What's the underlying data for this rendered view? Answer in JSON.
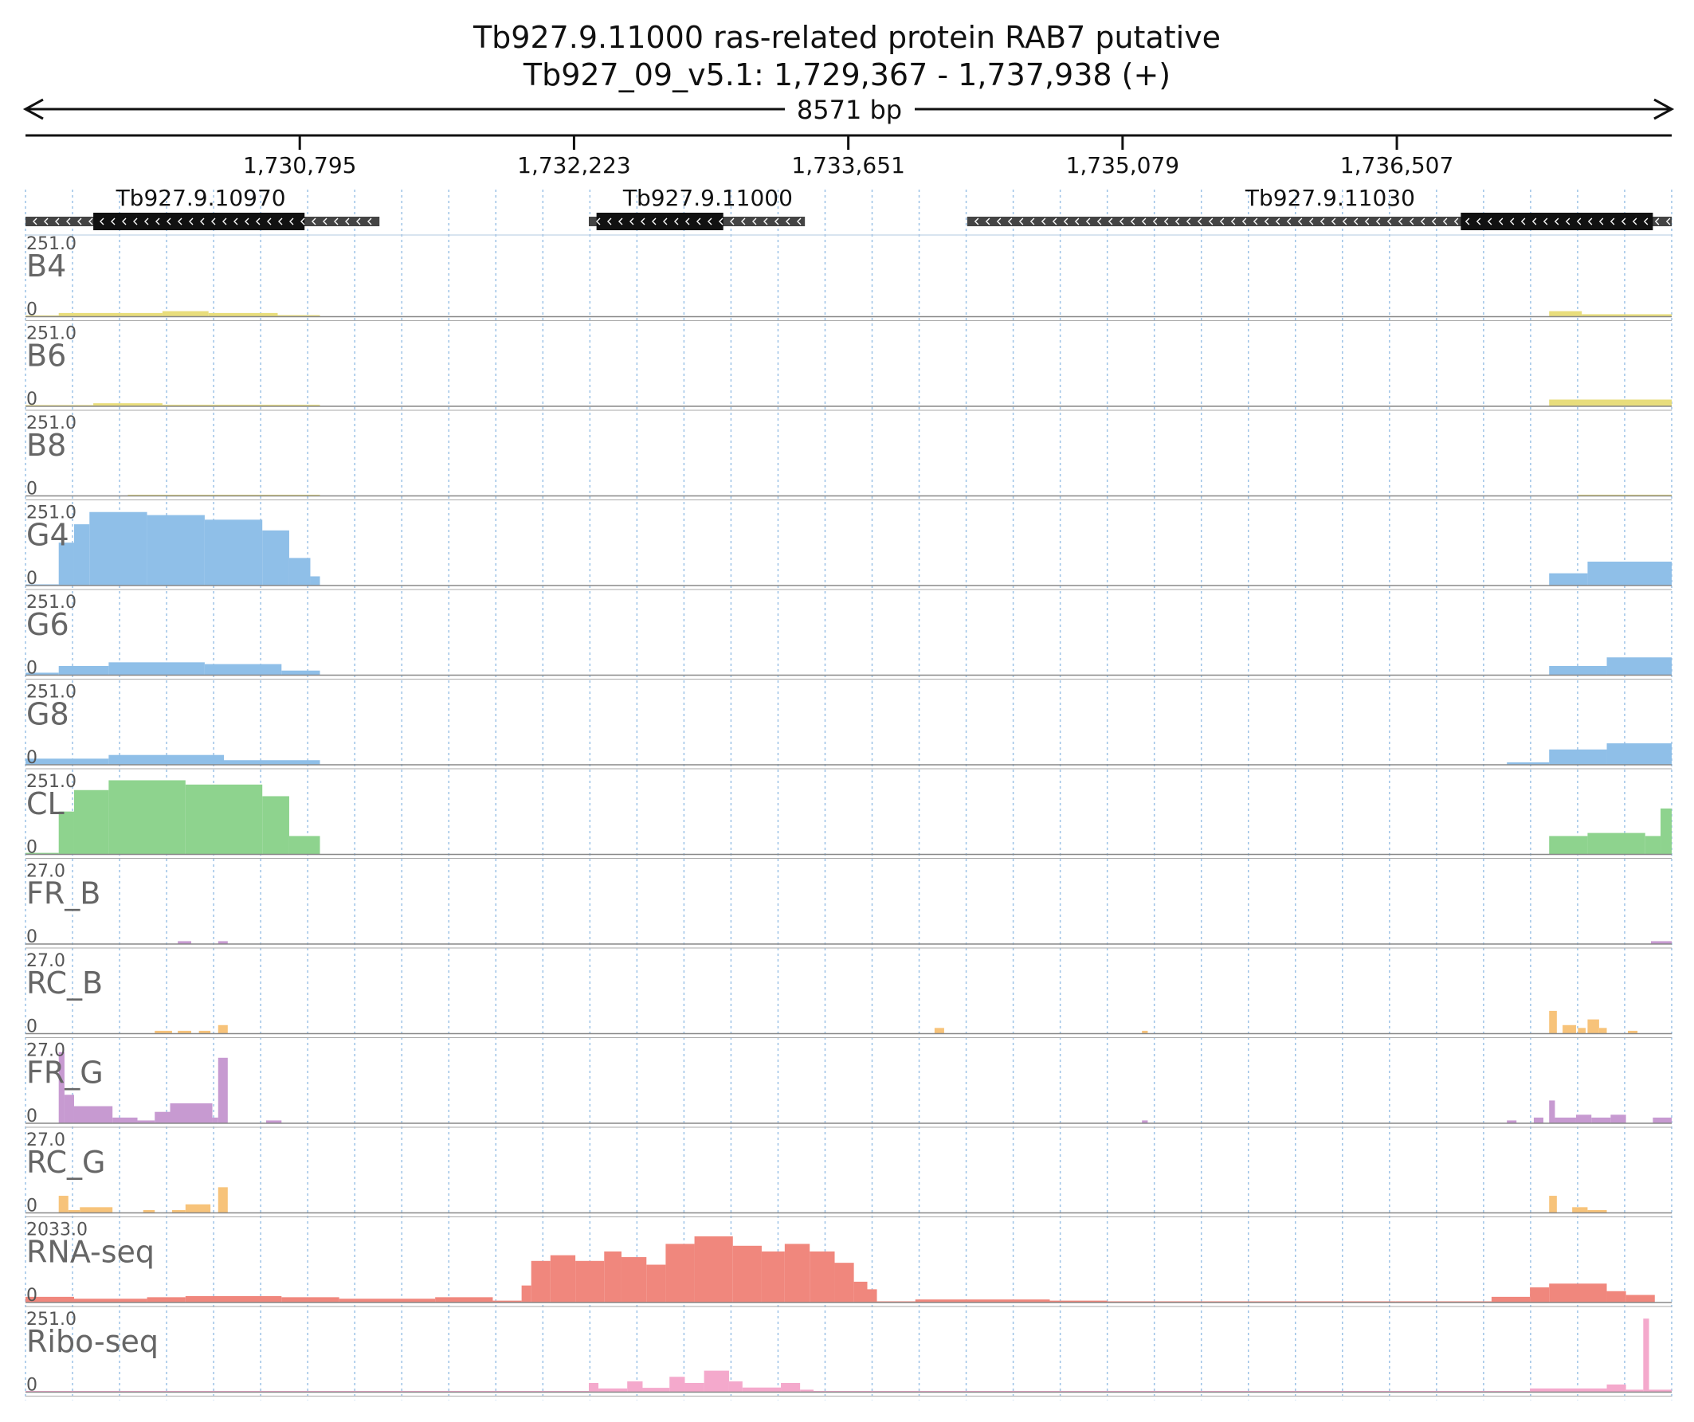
{
  "header": {
    "title_line1": "Tb927.9.11000  ras-related protein RAB7  putative",
    "title_line2": "Tb927_09_v5.1: 1,729,367 - 1,737,938 (+)",
    "span_label": "8571 bp"
  },
  "chart_data": {
    "type": "area",
    "region": {
      "chrom": "Tb927_09_v5.1",
      "start": 1729367,
      "end": 1737938,
      "strand": "+"
    },
    "ruler_ticks": [
      {
        "pos": 1730795,
        "label": "1,730,795"
      },
      {
        "pos": 1732223,
        "label": "1,732,223"
      },
      {
        "pos": 1733651,
        "label": "1,733,651"
      },
      {
        "pos": 1735079,
        "label": "1,735,079"
      },
      {
        "pos": 1736507,
        "label": "1,736,507"
      }
    ],
    "genes": [
      {
        "name": "Tb927.9.10970",
        "strand": "-",
        "start": 1729367,
        "end": 1731210,
        "cds_start": 1729720,
        "cds_end": 1730820,
        "label_pos": 1730280
      },
      {
        "name": "Tb927.9.11000",
        "strand": "-",
        "start": 1732300,
        "end": 1733425,
        "cds_start": 1732340,
        "cds_end": 1733000,
        "label_pos": 1732920
      },
      {
        "name": "Tb927.9.11030",
        "strand": "-",
        "start": 1734270,
        "end": 1737938,
        "cds_start": 1736840,
        "cds_end": 1737840,
        "label_pos": 1736160
      }
    ],
    "grid": true,
    "tracks": [
      {
        "name": "B4",
        "max": "251.0",
        "min": "0",
        "color": "#e8dd7c",
        "segments": [
          {
            "start": 1729367,
            "end": 1729540,
            "level": 4
          },
          {
            "start": 1729540,
            "end": 1730080,
            "level": 12
          },
          {
            "start": 1730080,
            "end": 1730320,
            "level": 18
          },
          {
            "start": 1730320,
            "end": 1730680,
            "level": 12
          },
          {
            "start": 1730680,
            "end": 1730900,
            "level": 5
          },
          {
            "start": 1737300,
            "end": 1737470,
            "level": 18
          },
          {
            "start": 1737470,
            "end": 1737938,
            "level": 8
          }
        ]
      },
      {
        "name": "B6",
        "max": "251.0",
        "min": "0",
        "color": "#e8dd7c",
        "segments": [
          {
            "start": 1729367,
            "end": 1729720,
            "level": 4
          },
          {
            "start": 1729720,
            "end": 1730080,
            "level": 10
          },
          {
            "start": 1730080,
            "end": 1730900,
            "level": 5
          },
          {
            "start": 1737300,
            "end": 1737938,
            "level": 22
          }
        ]
      },
      {
        "name": "B8",
        "max": "251.0",
        "min": "0",
        "color": "#e8dd7c",
        "segments": [
          {
            "start": 1729900,
            "end": 1730900,
            "level": 3
          },
          {
            "start": 1737450,
            "end": 1737938,
            "level": 4
          }
        ]
      },
      {
        "name": "G4",
        "max": "251.0",
        "min": "0",
        "color": "#8fbfe8",
        "segments": [
          {
            "start": 1729367,
            "end": 1729540,
            "level": 2
          },
          {
            "start": 1729540,
            "end": 1729620,
            "level": 140
          },
          {
            "start": 1729620,
            "end": 1729700,
            "level": 200
          },
          {
            "start": 1729700,
            "end": 1730000,
            "level": 240
          },
          {
            "start": 1730000,
            "end": 1730300,
            "level": 230
          },
          {
            "start": 1730300,
            "end": 1730600,
            "level": 215
          },
          {
            "start": 1730600,
            "end": 1730740,
            "level": 180
          },
          {
            "start": 1730740,
            "end": 1730850,
            "level": 90
          },
          {
            "start": 1730850,
            "end": 1730900,
            "level": 30
          },
          {
            "start": 1737300,
            "end": 1737500,
            "level": 40
          },
          {
            "start": 1737500,
            "end": 1737938,
            "level": 78
          }
        ]
      },
      {
        "name": "G6",
        "max": "251.0",
        "min": "0",
        "color": "#8fbfe8",
        "segments": [
          {
            "start": 1729367,
            "end": 1729540,
            "level": 8
          },
          {
            "start": 1729540,
            "end": 1729800,
            "level": 30
          },
          {
            "start": 1729800,
            "end": 1730300,
            "level": 42
          },
          {
            "start": 1730300,
            "end": 1730700,
            "level": 36
          },
          {
            "start": 1730700,
            "end": 1730900,
            "level": 15
          },
          {
            "start": 1737300,
            "end": 1737600,
            "level": 30
          },
          {
            "start": 1737600,
            "end": 1737938,
            "level": 58
          }
        ]
      },
      {
        "name": "G8",
        "max": "251.0",
        "min": "0",
        "color": "#8fbfe8",
        "segments": [
          {
            "start": 1729367,
            "end": 1729800,
            "level": 20
          },
          {
            "start": 1729800,
            "end": 1730400,
            "level": 32
          },
          {
            "start": 1730400,
            "end": 1730900,
            "level": 15
          },
          {
            "start": 1737080,
            "end": 1737300,
            "level": 8
          },
          {
            "start": 1737300,
            "end": 1737600,
            "level": 50
          },
          {
            "start": 1737600,
            "end": 1737938,
            "level": 70
          }
        ]
      },
      {
        "name": "CL",
        "max": "251.0",
        "min": "0",
        "color": "#8ed38e",
        "segments": [
          {
            "start": 1729367,
            "end": 1729540,
            "level": 5
          },
          {
            "start": 1729540,
            "end": 1729620,
            "level": 140
          },
          {
            "start": 1729620,
            "end": 1729800,
            "level": 210
          },
          {
            "start": 1729800,
            "end": 1730200,
            "level": 242
          },
          {
            "start": 1730200,
            "end": 1730600,
            "level": 228
          },
          {
            "start": 1730600,
            "end": 1730740,
            "level": 190
          },
          {
            "start": 1730740,
            "end": 1730900,
            "level": 60
          },
          {
            "start": 1737300,
            "end": 1737500,
            "level": 60
          },
          {
            "start": 1737500,
            "end": 1737800,
            "level": 70
          },
          {
            "start": 1737800,
            "end": 1737880,
            "level": 60
          },
          {
            "start": 1737880,
            "end": 1737938,
            "level": 150
          }
        ]
      },
      {
        "name": "FR_B",
        "max": "27.0",
        "min": "0",
        "color": "#c79ad1",
        "segments": [
          {
            "start": 1730160,
            "end": 1730230,
            "level": 1
          },
          {
            "start": 1730370,
            "end": 1730420,
            "level": 1
          },
          {
            "start": 1737830,
            "end": 1737938,
            "level": 1
          }
        ]
      },
      {
        "name": "RC_B",
        "max": "27.0",
        "min": "0",
        "color": "#f7c37a",
        "segments": [
          {
            "start": 1730040,
            "end": 1730130,
            "level": 1
          },
          {
            "start": 1730160,
            "end": 1730230,
            "level": 1
          },
          {
            "start": 1730270,
            "end": 1730330,
            "level": 1
          },
          {
            "start": 1730370,
            "end": 1730420,
            "level": 3
          },
          {
            "start": 1734100,
            "end": 1734150,
            "level": 2
          },
          {
            "start": 1735180,
            "end": 1735210,
            "level": 1
          },
          {
            "start": 1737300,
            "end": 1737340,
            "level": 8
          },
          {
            "start": 1737370,
            "end": 1737440,
            "level": 3
          },
          {
            "start": 1737450,
            "end": 1737490,
            "level": 2
          },
          {
            "start": 1737500,
            "end": 1737560,
            "level": 5
          },
          {
            "start": 1737560,
            "end": 1737600,
            "level": 2
          },
          {
            "start": 1737710,
            "end": 1737760,
            "level": 1
          }
        ]
      },
      {
        "name": "FR_G",
        "max": "27.0",
        "min": "0",
        "color": "#c79ad1",
        "segments": [
          {
            "start": 1729540,
            "end": 1729570,
            "level": 25
          },
          {
            "start": 1729570,
            "end": 1729620,
            "level": 10
          },
          {
            "start": 1729620,
            "end": 1729820,
            "level": 6
          },
          {
            "start": 1729820,
            "end": 1729950,
            "level": 2
          },
          {
            "start": 1729950,
            "end": 1730040,
            "level": 1
          },
          {
            "start": 1730040,
            "end": 1730120,
            "level": 4
          },
          {
            "start": 1730120,
            "end": 1730340,
            "level": 7
          },
          {
            "start": 1730340,
            "end": 1730370,
            "level": 2
          },
          {
            "start": 1730370,
            "end": 1730420,
            "level": 23
          },
          {
            "start": 1730620,
            "end": 1730700,
            "level": 1
          },
          {
            "start": 1735180,
            "end": 1735210,
            "level": 1
          },
          {
            "start": 1737080,
            "end": 1737130,
            "level": 1
          },
          {
            "start": 1737220,
            "end": 1737270,
            "level": 2
          },
          {
            "start": 1737300,
            "end": 1737330,
            "level": 8
          },
          {
            "start": 1737330,
            "end": 1737440,
            "level": 2
          },
          {
            "start": 1737440,
            "end": 1737520,
            "level": 3
          },
          {
            "start": 1737520,
            "end": 1737620,
            "level": 2
          },
          {
            "start": 1737620,
            "end": 1737700,
            "level": 3
          },
          {
            "start": 1737840,
            "end": 1737938,
            "level": 2
          }
        ]
      },
      {
        "name": "RC_G",
        "max": "27.0",
        "min": "0",
        "color": "#f7c37a",
        "segments": [
          {
            "start": 1729540,
            "end": 1729590,
            "level": 6
          },
          {
            "start": 1729590,
            "end": 1729650,
            "level": 1
          },
          {
            "start": 1729650,
            "end": 1729820,
            "level": 2
          },
          {
            "start": 1729980,
            "end": 1730040,
            "level": 1
          },
          {
            "start": 1730130,
            "end": 1730200,
            "level": 1
          },
          {
            "start": 1730200,
            "end": 1730330,
            "level": 3
          },
          {
            "start": 1730370,
            "end": 1730420,
            "level": 9
          },
          {
            "start": 1737300,
            "end": 1737340,
            "level": 6
          },
          {
            "start": 1737420,
            "end": 1737500,
            "level": 2
          },
          {
            "start": 1737500,
            "end": 1737600,
            "level": 1
          }
        ]
      },
      {
        "name": "RNA-seq",
        "max": "2033.0",
        "min": "0",
        "color": "#f0877d",
        "segments": [
          {
            "start": 1729367,
            "end": 1729620,
            "level": 150
          },
          {
            "start": 1729620,
            "end": 1730000,
            "level": 100
          },
          {
            "start": 1730000,
            "end": 1730200,
            "level": 140
          },
          {
            "start": 1730200,
            "end": 1730700,
            "level": 170
          },
          {
            "start": 1730700,
            "end": 1731000,
            "level": 140
          },
          {
            "start": 1731000,
            "end": 1731500,
            "level": 100
          },
          {
            "start": 1731500,
            "end": 1731800,
            "level": 140
          },
          {
            "start": 1731800,
            "end": 1731950,
            "level": 50
          },
          {
            "start": 1731950,
            "end": 1732000,
            "level": 450
          },
          {
            "start": 1732000,
            "end": 1732100,
            "level": 1100
          },
          {
            "start": 1732100,
            "end": 1732230,
            "level": 1250
          },
          {
            "start": 1732230,
            "end": 1732380,
            "level": 1100
          },
          {
            "start": 1732380,
            "end": 1732470,
            "level": 1350
          },
          {
            "start": 1732470,
            "end": 1732600,
            "level": 1200
          },
          {
            "start": 1732600,
            "end": 1732700,
            "level": 1000
          },
          {
            "start": 1732700,
            "end": 1732850,
            "level": 1550
          },
          {
            "start": 1732850,
            "end": 1733050,
            "level": 1750
          },
          {
            "start": 1733050,
            "end": 1733200,
            "level": 1500
          },
          {
            "start": 1733200,
            "end": 1733320,
            "level": 1350
          },
          {
            "start": 1733320,
            "end": 1733450,
            "level": 1550
          },
          {
            "start": 1733450,
            "end": 1733580,
            "level": 1350
          },
          {
            "start": 1733580,
            "end": 1733680,
            "level": 1050
          },
          {
            "start": 1733680,
            "end": 1733750,
            "level": 550
          },
          {
            "start": 1733750,
            "end": 1733800,
            "level": 350
          },
          {
            "start": 1733800,
            "end": 1734000,
            "level": 30
          },
          {
            "start": 1734000,
            "end": 1734700,
            "level": 80
          },
          {
            "start": 1734700,
            "end": 1735000,
            "level": 50
          },
          {
            "start": 1735000,
            "end": 1736500,
            "level": 30
          },
          {
            "start": 1736500,
            "end": 1737000,
            "level": 30
          },
          {
            "start": 1737000,
            "end": 1737200,
            "level": 150
          },
          {
            "start": 1737200,
            "end": 1737300,
            "level": 400
          },
          {
            "start": 1737300,
            "end": 1737600,
            "level": 500
          },
          {
            "start": 1737600,
            "end": 1737700,
            "level": 300
          },
          {
            "start": 1737700,
            "end": 1737850,
            "level": 200
          }
        ]
      },
      {
        "name": "Ribo-seq",
        "max": "251.0",
        "min": "0",
        "color": "#f4a9cc",
        "segments": [
          {
            "start": 1729367,
            "end": 1732300,
            "level": 4
          },
          {
            "start": 1732300,
            "end": 1732350,
            "level": 30
          },
          {
            "start": 1732350,
            "end": 1732500,
            "level": 12
          },
          {
            "start": 1732500,
            "end": 1732580,
            "level": 35
          },
          {
            "start": 1732580,
            "end": 1732720,
            "level": 14
          },
          {
            "start": 1732720,
            "end": 1732800,
            "level": 50
          },
          {
            "start": 1732800,
            "end": 1732900,
            "level": 30
          },
          {
            "start": 1732900,
            "end": 1733030,
            "level": 70
          },
          {
            "start": 1733030,
            "end": 1733100,
            "level": 35
          },
          {
            "start": 1733100,
            "end": 1733300,
            "level": 15
          },
          {
            "start": 1733300,
            "end": 1733400,
            "level": 30
          },
          {
            "start": 1733400,
            "end": 1733470,
            "level": 8
          },
          {
            "start": 1733470,
            "end": 1737200,
            "level": 4
          },
          {
            "start": 1737200,
            "end": 1737600,
            "level": 12
          },
          {
            "start": 1737600,
            "end": 1737700,
            "level": 25
          },
          {
            "start": 1737700,
            "end": 1737790,
            "level": 8
          },
          {
            "start": 1737790,
            "end": 1737820,
            "level": 240
          },
          {
            "start": 1737820,
            "end": 1737938,
            "level": 8
          }
        ]
      }
    ]
  }
}
